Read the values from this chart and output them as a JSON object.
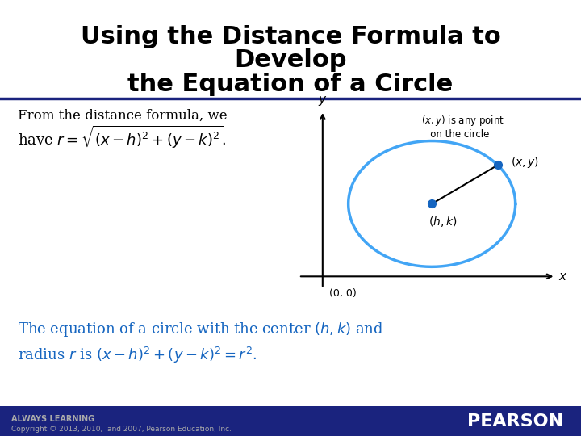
{
  "title_line1": "Using the Distance Formula to",
  "title_line2": "Develop",
  "title_line3": "the Equation of a Circle",
  "title_color": "#000000",
  "title_fontsize": 22,
  "bg_color": "#ffffff",
  "divider_color": "#1a237e",
  "text_color_black": "#000000",
  "text_color_blue": "#1565c0",
  "body_text1": "From the distance formula, we",
  "circle_color": "#42a5f5",
  "dot_color": "#1565c0",
  "label_always": "ALWAYS LEARNING",
  "label_copyright": "Copyright © 2013, 2010,  and 2007, Pearson Education, Inc.",
  "label_pearson": "PEARSON",
  "footer_bg": "#1a237e"
}
